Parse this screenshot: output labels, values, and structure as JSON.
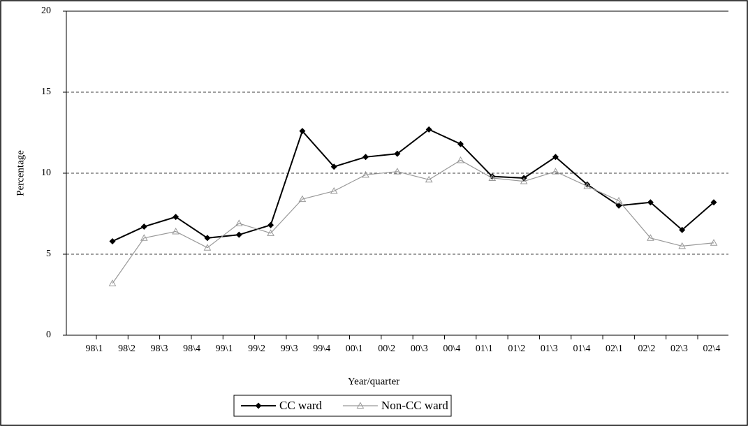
{
  "chart_data": {
    "type": "line",
    "x_label": "Year/quarter",
    "y_label": "Percentage",
    "categories": [
      "98\\1",
      "98\\2",
      "98\\3",
      "98\\4",
      "99\\1",
      "99\\2",
      "99\\3",
      "99\\4",
      "00\\1",
      "00\\2",
      "00\\3",
      "00\\4",
      "01\\1",
      "01\\2",
      "01\\3",
      "01\\4",
      "02\\1",
      "02\\2",
      "02\\3",
      "02\\4"
    ],
    "series": [
      {
        "name": "CC ward",
        "color": "#000000",
        "marker": "diamond",
        "values": [
          5.8,
          6.7,
          7.3,
          6.0,
          6.2,
          6.8,
          12.6,
          10.4,
          11.0,
          11.2,
          12.7,
          11.8,
          9.8,
          9.7,
          11.0,
          9.3,
          8.0,
          8.2,
          6.5,
          8.2
        ]
      },
      {
        "name": "Non-CC ward",
        "color": "#999999",
        "marker": "triangle",
        "values": [
          3.2,
          6.0,
          6.4,
          5.4,
          6.9,
          6.3,
          8.4,
          8.9,
          9.9,
          10.1,
          9.6,
          10.8,
          9.7,
          9.5,
          10.1,
          9.2,
          8.3,
          6.0,
          5.5,
          5.7
        ]
      }
    ],
    "ylim": [
      0,
      20
    ],
    "yticks": [
      0,
      5,
      10,
      15,
      20
    ],
    "grid": true,
    "legend": "bottom"
  }
}
